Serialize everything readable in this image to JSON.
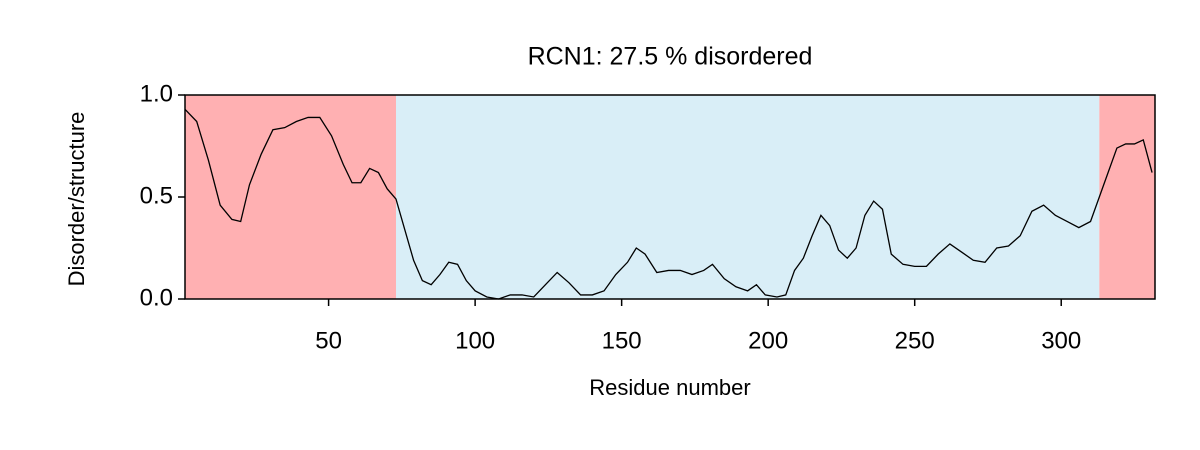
{
  "chart_data": {
    "type": "line",
    "title": "RCN1: 27.5 % disordered",
    "xlabel": "Residue number",
    "ylabel": "Disorder/structure",
    "xlim": [
      1,
      332
    ],
    "ylim": [
      0,
      1
    ],
    "xticks": [
      50,
      100,
      150,
      200,
      250,
      300
    ],
    "yticks": [
      {
        "value": 0,
        "label": "0.0"
      },
      {
        "value": 0.5,
        "label": "0.5"
      },
      {
        "value": 1,
        "label": "1.0"
      }
    ],
    "regions": [
      {
        "start": 1,
        "end": 73,
        "color": "#ffb0b2"
      },
      {
        "start": 73,
        "end": 313,
        "color": "#d9eef7"
      },
      {
        "start": 313,
        "end": 332,
        "color": "#ffb0b2"
      }
    ],
    "x": [
      1,
      5,
      9,
      13,
      17,
      20,
      23,
      27,
      31,
      35,
      39,
      43,
      47,
      51,
      55,
      58,
      61,
      64,
      67,
      70,
      73,
      76,
      79,
      82,
      85,
      88,
      91,
      94,
      97,
      100,
      104,
      108,
      112,
      116,
      120,
      124,
      128,
      132,
      136,
      140,
      144,
      148,
      152,
      155,
      158,
      162,
      166,
      170,
      174,
      178,
      181,
      185,
      189,
      193,
      196,
      199,
      203,
      206,
      209,
      212,
      215,
      218,
      221,
      224,
      227,
      230,
      233,
      236,
      239,
      242,
      246,
      250,
      254,
      258,
      262,
      266,
      270,
      274,
      278,
      282,
      286,
      290,
      294,
      298,
      302,
      306,
      310,
      313,
      316,
      319,
      322,
      325,
      328,
      331
    ],
    "series": [
      {
        "color": "#000000",
        "values": [
          0.93,
          0.87,
          0.68,
          0.46,
          0.39,
          0.38,
          0.56,
          0.71,
          0.83,
          0.84,
          0.87,
          0.89,
          0.89,
          0.8,
          0.66,
          0.57,
          0.57,
          0.64,
          0.62,
          0.54,
          0.49,
          0.34,
          0.19,
          0.09,
          0.07,
          0.12,
          0.18,
          0.17,
          0.09,
          0.04,
          0.01,
          0.0,
          0.02,
          0.02,
          0.01,
          0.07,
          0.13,
          0.08,
          0.02,
          0.02,
          0.04,
          0.12,
          0.18,
          0.25,
          0.22,
          0.13,
          0.14,
          0.14,
          0.12,
          0.14,
          0.17,
          0.1,
          0.06,
          0.04,
          0.07,
          0.02,
          0.01,
          0.02,
          0.14,
          0.2,
          0.31,
          0.41,
          0.36,
          0.24,
          0.2,
          0.25,
          0.41,
          0.48,
          0.44,
          0.22,
          0.17,
          0.16,
          0.16,
          0.22,
          0.27,
          0.23,
          0.19,
          0.18,
          0.25,
          0.26,
          0.31,
          0.43,
          0.46,
          0.41,
          0.38,
          0.35,
          0.38,
          0.5,
          0.62,
          0.74,
          0.76,
          0.76,
          0.78,
          0.62
        ]
      }
    ]
  }
}
